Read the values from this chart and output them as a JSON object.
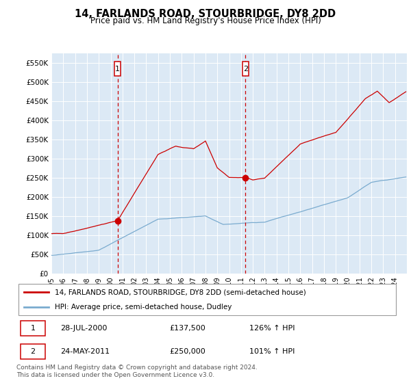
{
  "title": "14, FARLANDS ROAD, STOURBRIDGE, DY8 2DD",
  "subtitle": "Price paid vs. HM Land Registry's House Price Index (HPI)",
  "legend_line1": "14, FARLANDS ROAD, STOURBRIDGE, DY8 2DD (semi-detached house)",
  "legend_line2": "HPI: Average price, semi-detached house, Dudley",
  "annotation1_label": "1",
  "annotation1_date": "28-JUL-2000",
  "annotation1_price": "£137,500",
  "annotation1_hpi": "126% ↑ HPI",
  "annotation2_label": "2",
  "annotation2_date": "24-MAY-2011",
  "annotation2_price": "£250,000",
  "annotation2_hpi": "101% ↑ HPI",
  "footer": "Contains HM Land Registry data © Crown copyright and database right 2024.\nThis data is licensed under the Open Government Licence v3.0.",
  "red_color": "#cc0000",
  "blue_color": "#7aabcf",
  "bg_color": "#dce9f5",
  "grid_color": "#ffffff",
  "ylim": [
    0,
    575000
  ],
  "yticks": [
    0,
    50000,
    100000,
    150000,
    200000,
    250000,
    300000,
    350000,
    400000,
    450000,
    500000,
    550000
  ],
  "ytick_labels": [
    "£0",
    "£50K",
    "£100K",
    "£150K",
    "£200K",
    "£250K",
    "£300K",
    "£350K",
    "£400K",
    "£450K",
    "£500K",
    "£550K"
  ],
  "sale1_x": 2000.583,
  "sale1_y": 137500,
  "sale2_x": 2011.375,
  "sale2_y": 250000,
  "xmin": 1995,
  "xmax": 2025
}
